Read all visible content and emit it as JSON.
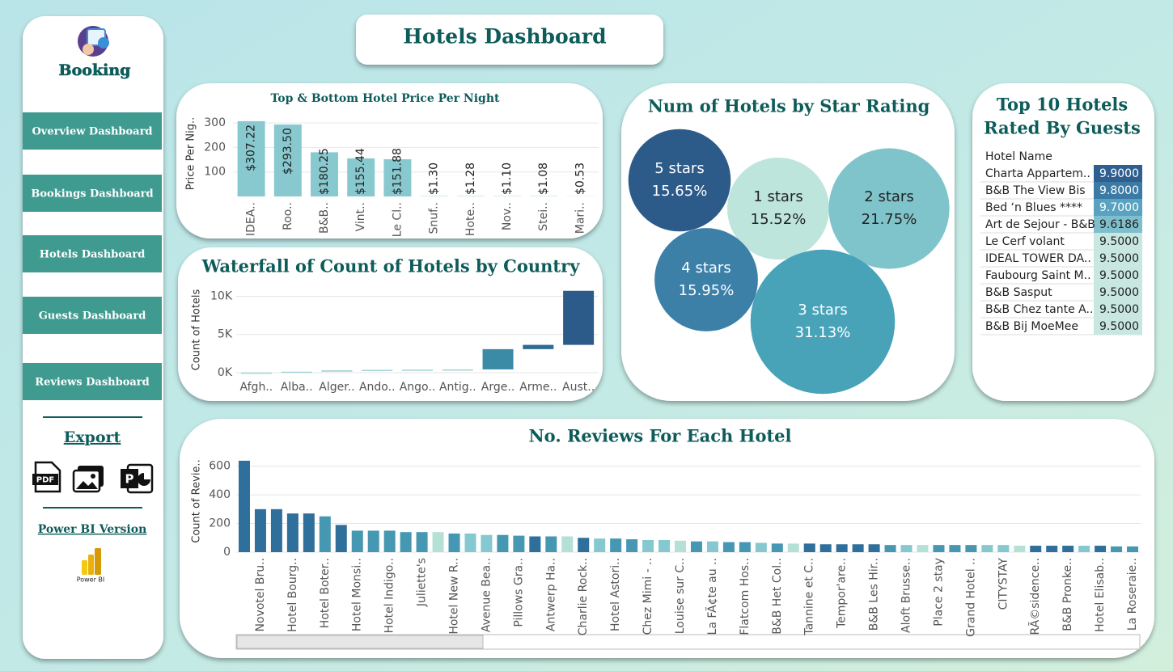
{
  "header": {
    "title": "Hotels Dashboard"
  },
  "sidebar": {
    "logo": "Booking",
    "buttons": [
      "Overview Dashboard",
      "Bookings Dashboard",
      "Hotels Dashboard",
      "Guests Dashboard",
      "Reviews Dashboard"
    ],
    "export": "Export",
    "export_icons": [
      "PDF"
    ],
    "power_bi_version": "Power BI Version",
    "power_bi_label": "Power BI"
  },
  "chart_data": [
    {
      "type": "bar",
      "title": "Top & Bottom Hotel Price Per Night",
      "y_label": "Price Per Nig..",
      "categories": [
        "IDEA..",
        "Roo..",
        "B&B..",
        "Vint..",
        "Le Cl..",
        "Snuf..",
        "Hote..",
        "Nov..",
        "Stei..",
        "Mari.."
      ],
      "values": [
        307.22,
        293.5,
        180.25,
        155.44,
        151.88,
        1.3,
        1.28,
        1.1,
        1.08,
        0.53
      ],
      "value_labels": [
        "$307.22",
        "$293.50",
        "$180.25",
        "$155.44",
        "$151.88",
        "$1.30",
        "$1.28",
        "$1.10",
        "$1.08",
        "$0.53"
      ],
      "color": "#88c9d0",
      "ylim": [
        0,
        330
      ],
      "yticks": [
        100,
        200,
        300
      ],
      "grid": true
    },
    {
      "type": "waterfall",
      "title": "Waterfall of Count of Hotels by Country",
      "y_label": "Count of Hotels",
      "categories": [
        "Afgh..",
        "Alba..",
        "Alger..",
        "Ando..",
        "Ango..",
        "Antig..",
        "Arge..",
        "Arme..",
        "Aust.."
      ],
      "values": [
        20,
        110,
        180,
        60,
        30,
        30,
        2650,
        560,
        7070
      ],
      "colors": [
        "#9fd3d6",
        "#9fd3d6",
        "#9fd3d6",
        "#9fd3d6",
        "#9fd3d6",
        "#9fd3d6",
        "#3b8ba6",
        "#2f6c93",
        "#2c5b8a"
      ],
      "ylim": [
        0,
        11000
      ],
      "yticks": [
        {
          "value": 0,
          "label": "0K"
        },
        {
          "value": 5000,
          "label": "5K"
        },
        {
          "value": 10000,
          "label": "10K"
        }
      ],
      "grid": true
    },
    {
      "type": "bubble",
      "title": "Num of Hotels by Star Rating",
      "categories": [
        "5 stars",
        "1 stars",
        "2 stars",
        "4 stars",
        "3 stars"
      ],
      "values": [
        15.65,
        15.52,
        21.75,
        15.95,
        31.13
      ],
      "value_labels": [
        "15.65%",
        "15.52%",
        "21.75%",
        "15.95%",
        "31.13%"
      ],
      "colors": [
        "#2c5b8a",
        "#bde5dc",
        "#80c4cb",
        "#3c80a8",
        "#48a3b9"
      ]
    },
    {
      "type": "table",
      "title_lines": [
        "Top 10 Hotels",
        "Rated By Guests"
      ],
      "column": "Hotel Name",
      "categories": [
        "Charta Appartem..",
        "B&B The View Bis",
        "Bed ‘n Blues ****",
        "Art de Sejour - B&B",
        "Le Cerf volant",
        "IDEAL TOWER DA..",
        "Faubourg Saint M..",
        "B&B Sasput",
        "B&B Chez tante A..",
        "B&B Bij MoeMee"
      ],
      "values": [
        9.9,
        9.8,
        9.7,
        9.6186,
        9.5,
        9.5,
        9.5,
        9.5,
        9.5,
        9.5
      ],
      "value_labels": [
        "9.9000",
        "9.8000",
        "9.7000",
        "9.6186",
        "9.5000",
        "9.5000",
        "9.5000",
        "9.5000",
        "9.5000",
        "9.5000"
      ],
      "colors": [
        "#2e5f8f",
        "#3b7aa5",
        "#5aa3c0",
        "#7fbfcd",
        "#c7e7e0",
        "#c7e7e0",
        "#c7e7e0",
        "#c7e7e0",
        "#c7e7e0",
        "#c7e7e0"
      ]
    },
    {
      "type": "bar",
      "title": "No. Reviews For Each Hotel",
      "y_label": "Count of Revie..",
      "categories": [
        null,
        "Novotel Bru..",
        null,
        "Hotel Bourg..",
        null,
        "Hotel Boter..",
        null,
        "Hotel Monsi..",
        null,
        "Hotel Indigo..",
        null,
        "Juliette's",
        null,
        "Hotel New R..",
        null,
        "Avenue Bea..",
        null,
        "Pillows Gra..",
        null,
        "Antwerp Ha..",
        null,
        "Charlie Rock..",
        null,
        "Hotel Astori..",
        null,
        "Chez Mimi - ..",
        null,
        "Louise sur C..",
        null,
        "La FÃ¢te au ..",
        null,
        "Flatcom Hos..",
        null,
        "B&B Het Col..",
        null,
        "Tannine et C..",
        null,
        "Tempor'are..",
        null,
        "B&B Les Hir..",
        null,
        "Aloft Brusse..",
        null,
        "Place 2 stay",
        null,
        "Grand Hotel ..",
        null,
        "CITYSTAY",
        null,
        "RÃ©sidence..",
        null,
        "B&B Pronke..",
        null,
        "Hotel Elisab..",
        null,
        "La Roseraie.."
      ],
      "values": [
        638,
        300,
        300,
        270,
        270,
        250,
        190,
        150,
        150,
        150,
        140,
        140,
        140,
        130,
        130,
        120,
        120,
        115,
        110,
        110,
        110,
        100,
        95,
        95,
        90,
        85,
        85,
        80,
        75,
        75,
        70,
        70,
        65,
        60,
        60,
        60,
        55,
        55,
        55,
        55,
        50,
        50,
        50,
        50,
        50,
        50,
        50,
        50,
        45,
        45,
        45,
        45,
        45,
        45,
        40,
        40
      ],
      "colors": [
        "#2f6f9b",
        "#2f6f9b",
        "#2f6f9b",
        "#2f6f9b",
        "#2f6f9b",
        "#4597b2",
        "#2f6f9b",
        "#4597b2",
        "#4597b2",
        "#4597b2",
        "#4597b2",
        "#4597b2",
        "#b5e0d6",
        "#4597b2",
        "#86c8cf",
        "#86c8cf",
        "#4597b2",
        "#4597b2",
        "#2f6f9b",
        "#4597b2",
        "#b5e0d6",
        "#2f6f9b",
        "#86c8cf",
        "#4597b2",
        "#4597b2",
        "#86c8cf",
        "#86c8cf",
        "#b5e0d6",
        "#4597b2",
        "#86c8cf",
        "#4597b2",
        "#4597b2",
        "#86c8cf",
        "#4597b2",
        "#b5e0d6",
        "#2f6f9b",
        "#2f6f9b",
        "#2f6f9b",
        "#2f6f9b",
        "#2f6f9b",
        "#4597b2",
        "#86c8cf",
        "#b5e0d6",
        "#4597b2",
        "#4597b2",
        "#4597b2",
        "#86c8cf",
        "#86c8cf",
        "#b5e0d6",
        "#2f6f9b",
        "#2f6f9b",
        "#2f6f9b",
        "#86c8cf",
        "#2f6f9b",
        "#4597b2",
        "#4597b2"
      ],
      "ylim": [
        0,
        660
      ],
      "yticks": [
        0,
        200,
        400,
        600
      ],
      "grid": true
    }
  ]
}
